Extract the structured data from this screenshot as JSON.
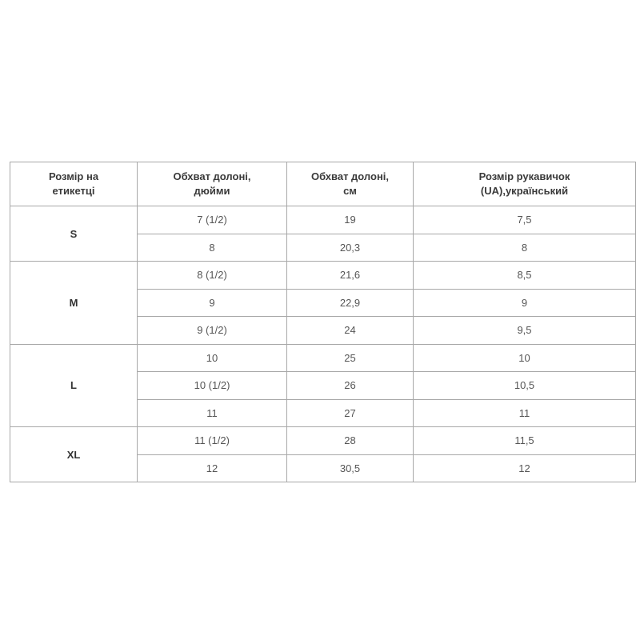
{
  "headers": [
    [
      "Розмір на",
      "етикетці"
    ],
    [
      "Обхват долоні,",
      "дюйми"
    ],
    [
      "Обхват долоні,",
      "см"
    ],
    [
      "Розмір рукавичок",
      "(UA),український"
    ]
  ],
  "groups": [
    {
      "size": "S",
      "rows": [
        [
          "7 (1/2)",
          "19",
          "7,5"
        ],
        [
          "8",
          "20,3",
          "8"
        ]
      ]
    },
    {
      "size": "M",
      "rows": [
        [
          "8 (1/2)",
          "21,6",
          "8,5"
        ],
        [
          "9",
          "22,9",
          "9"
        ],
        [
          "9 (1/2)",
          "24",
          "9,5"
        ]
      ]
    },
    {
      "size": "L",
      "rows": [
        [
          "10",
          "25",
          "10"
        ],
        [
          "10 (1/2)",
          "26",
          "10,5"
        ],
        [
          "11",
          "27",
          "11"
        ]
      ]
    },
    {
      "size": "XL",
      "rows": [
        [
          "11 (1/2)",
          "28",
          "11,5"
        ],
        [
          "12",
          "30,5",
          "12"
        ]
      ]
    }
  ]
}
